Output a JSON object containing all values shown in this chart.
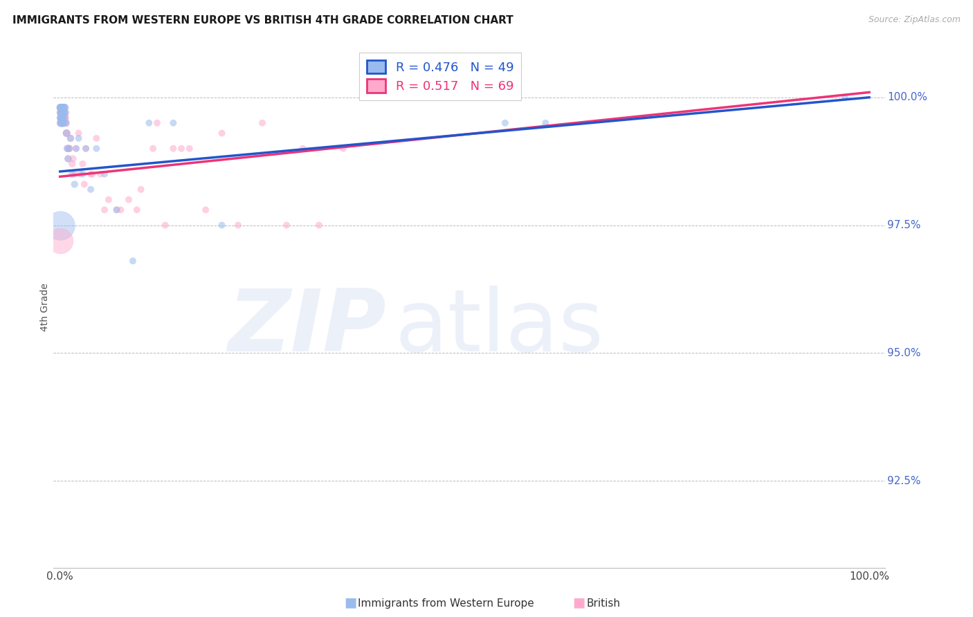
{
  "title": "IMMIGRANTS FROM WESTERN EUROPE VS BRITISH 4TH GRADE CORRELATION CHART",
  "source": "Source: ZipAtlas.com",
  "ylabel": "4th Grade",
  "blue_R": 0.476,
  "blue_N": 49,
  "pink_R": 0.517,
  "pink_N": 69,
  "blue_color": "#99BBEE",
  "pink_color": "#FFAACC",
  "blue_line_color": "#2255CC",
  "pink_line_color": "#EE3377",
  "ymin": 90.8,
  "ymax": 101.0,
  "xmin": -0.8,
  "xmax": 102.0,
  "ytick_vals": [
    92.5,
    95.0,
    97.5,
    100.0
  ],
  "ytick_labels": [
    "92.5%",
    "95.0%",
    "97.5%",
    "100.0%"
  ],
  "blue_x": [
    0.05,
    0.08,
    0.1,
    0.12,
    0.15,
    0.18,
    0.2,
    0.22,
    0.25,
    0.28,
    0.3,
    0.35,
    0.38,
    0.4,
    0.45,
    0.5,
    0.55,
    0.6,
    0.7,
    0.8,
    0.9,
    1.0,
    1.1,
    1.3,
    1.5,
    1.8,
    2.0,
    2.3,
    2.8,
    3.2,
    3.8,
    4.5,
    5.5,
    7.0,
    9.0,
    11.0,
    14.0,
    20.0,
    55.0,
    60.0,
    97.0,
    0.06,
    0.09,
    0.13,
    0.17,
    0.24,
    0.32,
    0.42,
    0.65
  ],
  "blue_y": [
    99.8,
    99.5,
    99.6,
    99.7,
    99.8,
    99.5,
    99.6,
    99.7,
    99.8,
    99.5,
    99.6,
    99.7,
    99.8,
    99.5,
    99.8,
    99.7,
    99.6,
    99.8,
    99.5,
    99.3,
    99.0,
    98.8,
    99.0,
    99.2,
    98.5,
    98.3,
    99.0,
    99.2,
    98.5,
    99.0,
    98.2,
    99.0,
    98.5,
    97.8,
    96.8,
    99.5,
    99.5,
    97.5,
    99.5,
    99.5,
    100.0,
    99.8,
    99.6,
    99.7,
    99.8,
    99.6,
    99.7,
    99.8,
    99.7
  ],
  "blue_sizes": [
    60,
    60,
    60,
    60,
    60,
    60,
    60,
    60,
    60,
    60,
    60,
    60,
    60,
    60,
    60,
    60,
    60,
    60,
    55,
    55,
    50,
    50,
    50,
    50,
    50,
    50,
    45,
    45,
    45,
    45,
    45,
    45,
    45,
    45,
    45,
    45,
    45,
    45,
    45,
    45,
    45,
    60,
    60,
    60,
    60,
    60,
    60,
    60,
    60
  ],
  "pink_x": [
    0.05,
    0.08,
    0.1,
    0.12,
    0.15,
    0.18,
    0.2,
    0.22,
    0.25,
    0.28,
    0.3,
    0.35,
    0.38,
    0.4,
    0.45,
    0.5,
    0.55,
    0.6,
    0.7,
    0.8,
    0.9,
    1.0,
    1.1,
    1.3,
    1.5,
    1.8,
    2.0,
    2.3,
    2.8,
    3.2,
    3.8,
    4.5,
    5.0,
    6.0,
    7.0,
    8.5,
    10.0,
    12.0,
    14.0,
    16.0,
    20.0,
    25.0,
    30.0,
    35.0,
    0.06,
    0.09,
    0.13,
    0.17,
    0.24,
    0.32,
    0.42,
    0.65,
    0.75,
    0.85,
    1.2,
    1.6,
    2.5,
    3.0,
    4.0,
    5.5,
    7.5,
    9.5,
    11.5,
    13.0,
    15.0,
    18.0,
    22.0,
    28.0,
    32.0
  ],
  "pink_y": [
    99.8,
    99.5,
    99.7,
    99.6,
    99.8,
    99.5,
    99.7,
    99.6,
    99.8,
    99.5,
    99.7,
    99.6,
    99.8,
    99.5,
    99.7,
    99.6,
    99.8,
    99.7,
    99.5,
    99.3,
    99.0,
    98.8,
    99.0,
    99.2,
    98.7,
    98.5,
    99.0,
    99.3,
    98.7,
    99.0,
    98.5,
    99.2,
    98.5,
    98.0,
    97.8,
    98.0,
    98.2,
    99.5,
    99.0,
    99.0,
    99.3,
    99.5,
    99.0,
    99.0,
    99.7,
    99.6,
    99.7,
    99.8,
    99.6,
    99.7,
    99.8,
    99.6,
    99.5,
    99.3,
    99.0,
    98.8,
    98.5,
    98.3,
    98.5,
    97.8,
    97.8,
    97.8,
    99.0,
    97.5,
    99.0,
    97.8,
    97.5,
    97.5,
    97.5
  ],
  "pink_sizes": [
    60,
    60,
    60,
    60,
    60,
    60,
    60,
    60,
    60,
    60,
    60,
    60,
    60,
    60,
    60,
    60,
    60,
    60,
    55,
    55,
    50,
    50,
    50,
    50,
    50,
    50,
    45,
    45,
    45,
    45,
    45,
    45,
    45,
    45,
    45,
    45,
    45,
    45,
    45,
    45,
    45,
    45,
    45,
    45,
    60,
    60,
    60,
    60,
    60,
    60,
    60,
    60,
    55,
    55,
    50,
    50,
    45,
    45,
    45,
    45,
    45,
    45,
    45,
    45,
    45,
    45,
    45,
    45,
    45
  ],
  "big_blue_x": [
    0.02
  ],
  "big_blue_y": [
    97.5
  ],
  "big_blue_size": [
    900
  ],
  "big_pink_x": [
    0.02
  ],
  "big_pink_y": [
    97.2
  ],
  "big_pink_size": [
    700
  ]
}
